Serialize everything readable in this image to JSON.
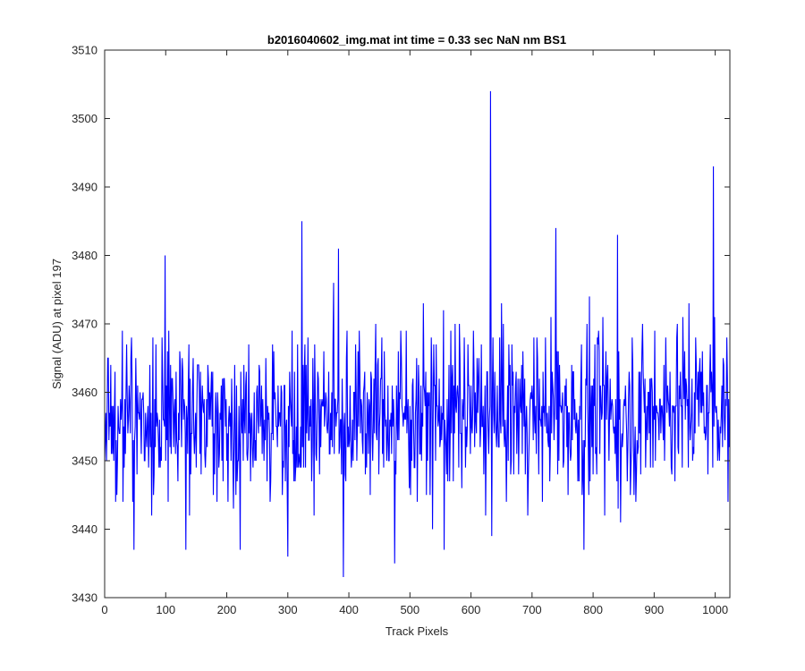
{
  "chart_data": {
    "type": "line",
    "title": "b2016040602_img.mat int time = 0.33 sec  NaN nm BS1",
    "xlabel": "Track Pixels",
    "ylabel": "Signal (ADU) at pixel 197",
    "xlim": [
      0,
      1024
    ],
    "ylim": [
      3430,
      3510
    ],
    "xticks": [
      0,
      100,
      200,
      300,
      400,
      500,
      600,
      700,
      800,
      900,
      1000
    ],
    "yticks": [
      3430,
      3440,
      3450,
      3460,
      3470,
      3480,
      3490,
      3500,
      3510
    ],
    "grid": false,
    "series": [
      {
        "color": "#0000ff",
        "n_points": 1024,
        "baseline": 3457,
        "noise_sd": 6,
        "peaks": [
          {
            "x": 323,
            "y": 3485
          },
          {
            "x": 383,
            "y": 3481
          },
          {
            "x": 391,
            "y": 3433
          },
          {
            "x": 475,
            "y": 3435
          },
          {
            "x": 632,
            "y": 3504
          },
          {
            "x": 634,
            "y": 3439
          },
          {
            "x": 739,
            "y": 3484
          },
          {
            "x": 785,
            "y": 3437
          },
          {
            "x": 840,
            "y": 3483
          },
          {
            "x": 845,
            "y": 3441
          },
          {
            "x": 997,
            "y": 3493
          },
          {
            "x": 99,
            "y": 3480
          },
          {
            "x": 48,
            "y": 3437
          },
          {
            "x": 133,
            "y": 3437
          },
          {
            "x": 300,
            "y": 3436
          },
          {
            "x": 222,
            "y": 3437
          },
          {
            "x": 556,
            "y": 3437
          },
          {
            "x": 1021,
            "y": 3444
          }
        ]
      }
    ]
  }
}
